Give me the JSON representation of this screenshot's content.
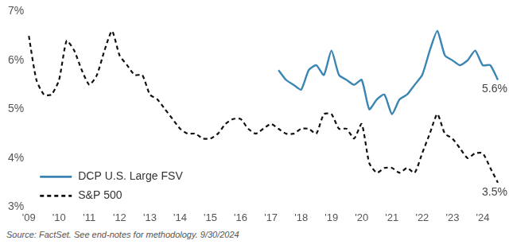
{
  "chart_data": {
    "type": "line",
    "note": "Source: FactSet. See end-notes for methodology. 9/30/2024",
    "categories": [
      "'09",
      null,
      null,
      null,
      "'10",
      null,
      null,
      null,
      "'11",
      null,
      null,
      null,
      "'12",
      null,
      null,
      null,
      "'13",
      null,
      null,
      null,
      "'14",
      null,
      null,
      null,
      "'15",
      null,
      null,
      null,
      "'16",
      null,
      null,
      null,
      "'17",
      null,
      null,
      null,
      "'18",
      null,
      null,
      null,
      "'19",
      null,
      null,
      null,
      "'20",
      null,
      null,
      null,
      "'21",
      null,
      null,
      null,
      "'22",
      null,
      null,
      null,
      "'23",
      null,
      null,
      null,
      "'24",
      null,
      null
    ],
    "series": [
      {
        "name": "DCP U.S. Large FSV",
        "color": "#3a85b3",
        "line_style": "solid",
        "values": [
          null,
          null,
          null,
          null,
          null,
          null,
          null,
          null,
          null,
          null,
          null,
          null,
          null,
          null,
          null,
          null,
          null,
          null,
          null,
          null,
          null,
          null,
          null,
          null,
          null,
          null,
          null,
          null,
          null,
          null,
          null,
          null,
          null,
          5.8,
          5.6,
          5.5,
          5.4,
          5.8,
          5.9,
          5.7,
          6.2,
          5.7,
          5.6,
          5.5,
          5.6,
          5.0,
          5.2,
          5.3,
          4.9,
          5.2,
          5.3,
          5.5,
          5.7,
          6.2,
          6.6,
          6.1,
          6.0,
          5.9,
          6.0,
          6.2,
          5.9,
          5.9,
          5.6
        ]
      },
      {
        "name": "S&P 500",
        "color": "#111111",
        "line_style": "dashed",
        "values": [
          6.5,
          5.6,
          5.3,
          5.3,
          5.6,
          6.4,
          6.2,
          5.8,
          5.5,
          5.7,
          6.2,
          6.6,
          6.1,
          5.9,
          5.7,
          5.7,
          5.3,
          5.2,
          5.0,
          4.8,
          4.6,
          4.5,
          4.5,
          4.4,
          4.4,
          4.5,
          4.7,
          4.8,
          4.8,
          4.6,
          4.5,
          4.6,
          4.7,
          4.6,
          4.5,
          4.5,
          4.6,
          4.6,
          4.5,
          4.9,
          4.9,
          4.6,
          4.6,
          4.4,
          4.7,
          3.9,
          3.7,
          3.8,
          3.8,
          3.7,
          3.8,
          3.7,
          4.1,
          4.5,
          4.9,
          4.5,
          4.4,
          4.2,
          4.0,
          4.1,
          4.1,
          3.8,
          3.5
        ]
      }
    ],
    "annotations": [
      {
        "text": "5.6%",
        "y": 5.6,
        "series": "DCP U.S. Large FSV"
      },
      {
        "text": "3.5%",
        "y": 3.5,
        "series": "S&P 500"
      }
    ],
    "ylim": [
      3,
      7
    ],
    "yticks": [
      {
        "value": 3,
        "label": "3%"
      },
      {
        "value": 4,
        "label": "4%"
      },
      {
        "value": 5,
        "label": "5%"
      },
      {
        "value": 6,
        "label": "6%"
      },
      {
        "value": 7,
        "label": "7%"
      }
    ],
    "grid": false,
    "legend": "lower left"
  }
}
